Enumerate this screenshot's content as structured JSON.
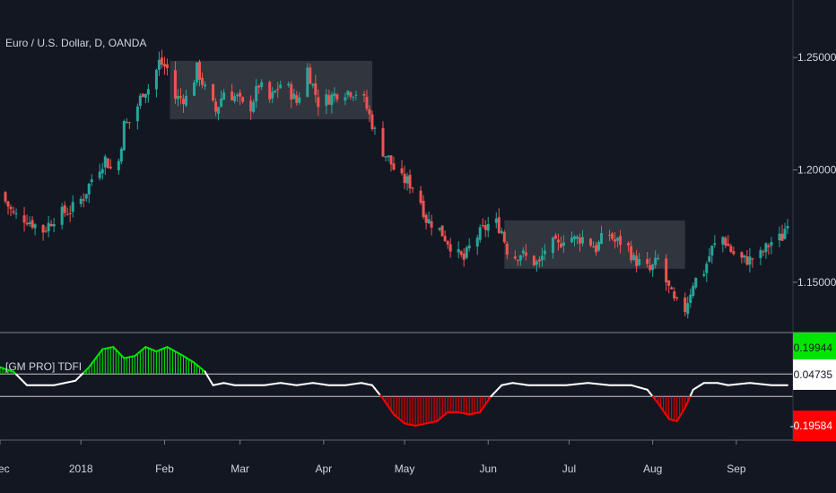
{
  "chart_data": [
    {
      "type": "candlestick",
      "title": "Euro / U.S. Dollar, D, OANDA",
      "ylim": [
        1.128,
        1.27
      ],
      "y_ticks": [
        "1.25000",
        "1.20000",
        "1.15000"
      ],
      "y_tick_values": [
        1.25,
        1.2,
        1.15
      ],
      "x_tick_labels": [
        "Dec",
        "2018",
        "Feb",
        "Mar",
        "Apr",
        "May",
        "Jun",
        "Jul",
        "Aug",
        "Sep"
      ],
      "x_tick_days": [
        -30,
        0,
        31,
        59,
        90,
        120,
        151,
        181,
        212,
        243
      ],
      "x_range_days": [
        -30,
        262
      ],
      "up_color": "#26a69a",
      "down_color": "#ef5350",
      "close_path": [
        [
          -30,
          1.19
        ],
        [
          -25,
          1.18
        ],
        [
          -20,
          1.178
        ],
        [
          -14,
          1.173
        ],
        [
          -9,
          1.18
        ],
        [
          -4,
          1.182
        ],
        [
          1,
          1.188
        ],
        [
          4,
          1.196
        ],
        [
          9,
          1.205
        ],
        [
          13,
          1.196
        ],
        [
          16,
          1.22
        ],
        [
          19,
          1.222
        ],
        [
          23,
          1.235
        ],
        [
          26,
          1.237
        ],
        [
          29,
          1.248
        ],
        [
          32,
          1.245
        ],
        [
          35,
          1.232
        ],
        [
          40,
          1.232
        ],
        [
          43,
          1.245
        ],
        [
          46,
          1.236
        ],
        [
          50,
          1.226
        ],
        [
          53,
          1.235
        ],
        [
          58,
          1.232
        ],
        [
          62,
          1.225
        ],
        [
          66,
          1.238
        ],
        [
          70,
          1.231
        ],
        [
          75,
          1.24
        ],
        [
          80,
          1.23
        ],
        [
          84,
          1.245
        ],
        [
          88,
          1.23
        ],
        [
          92,
          1.232
        ],
        [
          96,
          1.235
        ],
        [
          100,
          1.235
        ],
        [
          104,
          1.234
        ],
        [
          107,
          1.224
        ],
        [
          111,
          1.21
        ],
        [
          114,
          1.205
        ],
        [
          118,
          1.196
        ],
        [
          121,
          1.195
        ],
        [
          125,
          1.19
        ],
        [
          128,
          1.178
        ],
        [
          132,
          1.175
        ],
        [
          135,
          1.17
        ],
        [
          139,
          1.163
        ],
        [
          142,
          1.16
        ],
        [
          145,
          1.168
        ],
        [
          149,
          1.173
        ],
        [
          153,
          1.178
        ],
        [
          156,
          1.173
        ],
        [
          159,
          1.16
        ],
        [
          163,
          1.163
        ],
        [
          166,
          1.16
        ],
        [
          170,
          1.158
        ],
        [
          173,
          1.168
        ],
        [
          177,
          1.166
        ],
        [
          180,
          1.172
        ],
        [
          183,
          1.169
        ],
        [
          187,
          1.17
        ],
        [
          191,
          1.165
        ],
        [
          195,
          1.173
        ],
        [
          198,
          1.168
        ],
        [
          202,
          1.168
        ],
        [
          205,
          1.16
        ],
        [
          208,
          1.158
        ],
        [
          211,
          1.155
        ],
        [
          214,
          1.16
        ],
        [
          217,
          1.15
        ],
        [
          220,
          1.141
        ],
        [
          224,
          1.138
        ],
        [
          227,
          1.15
        ],
        [
          231,
          1.155
        ],
        [
          234,
          1.165
        ],
        [
          238,
          1.17
        ],
        [
          241,
          1.164
        ],
        [
          244,
          1.16
        ],
        [
          248,
          1.16
        ],
        [
          252,
          1.162
        ],
        [
          256,
          1.168
        ],
        [
          260,
          1.17
        ],
        [
          262,
          1.178
        ]
      ],
      "consolidation_zones": [
        {
          "x": [
            33,
            108
          ],
          "y": [
            1.2225,
            1.2485
          ]
        },
        {
          "x": [
            157,
            224
          ],
          "y": [
            1.156,
            1.1775
          ]
        }
      ]
    },
    {
      "type": "line",
      "title": "[GM PRO] TDFI",
      "ylim": [
        -0.24,
        0.23
      ],
      "upper_level": 0.05,
      "lower_level": -0.05,
      "last_values": [
        "0.19944",
        "0.04735",
        "-0.19584"
      ],
      "last_value_colors": [
        "#00e600",
        "#ffffff",
        "#ff0000"
      ],
      "series_path": [
        [
          -30,
          0.08
        ],
        [
          -25,
          0.06
        ],
        [
          -20,
          0.0
        ],
        [
          -10,
          0.0
        ],
        [
          -2,
          0.02
        ],
        [
          3,
          0.08
        ],
        [
          8,
          0.16
        ],
        [
          12,
          0.17
        ],
        [
          16,
          0.12
        ],
        [
          20,
          0.13
        ],
        [
          24,
          0.17
        ],
        [
          28,
          0.15
        ],
        [
          32,
          0.17
        ],
        [
          35,
          0.15
        ],
        [
          38,
          0.13
        ],
        [
          42,
          0.1
        ],
        [
          46,
          0.06
        ],
        [
          49,
          0.0
        ],
        [
          53,
          0.01
        ],
        [
          57,
          0.0
        ],
        [
          62,
          0.0
        ],
        [
          68,
          0.0
        ],
        [
          74,
          0.01
        ],
        [
          80,
          0.0
        ],
        [
          86,
          0.01
        ],
        [
          92,
          0.0
        ],
        [
          98,
          0.0
        ],
        [
          104,
          0.01
        ],
        [
          108,
          0.0
        ],
        [
          112,
          -0.06
        ],
        [
          116,
          -0.13
        ],
        [
          120,
          -0.17
        ],
        [
          124,
          -0.18
        ],
        [
          128,
          -0.17
        ],
        [
          132,
          -0.16
        ],
        [
          136,
          -0.12
        ],
        [
          140,
          -0.12
        ],
        [
          144,
          -0.13
        ],
        [
          148,
          -0.12
        ],
        [
          152,
          -0.05
        ],
        [
          156,
          0.0
        ],
        [
          160,
          0.01
        ],
        [
          166,
          0.0
        ],
        [
          172,
          0.0
        ],
        [
          180,
          0.0
        ],
        [
          188,
          0.01
        ],
        [
          196,
          0.0
        ],
        [
          204,
          0.0
        ],
        [
          210,
          -0.02
        ],
        [
          214,
          -0.08
        ],
        [
          218,
          -0.15
        ],
        [
          221,
          -0.16
        ],
        [
          224,
          -0.1
        ],
        [
          227,
          -0.02
        ],
        [
          231,
          0.01
        ],
        [
          236,
          0.01
        ],
        [
          240,
          0.0
        ],
        [
          248,
          0.01
        ],
        [
          256,
          0.0
        ],
        [
          262,
          0.0
        ]
      ],
      "fill_up_color": "#00e600",
      "fill_down_color": "#ff0000",
      "line_color": "#ffffff"
    }
  ],
  "colors": {
    "background": "#131722",
    "axis_text": "#d1d4dc",
    "separator": "#5d606b"
  }
}
